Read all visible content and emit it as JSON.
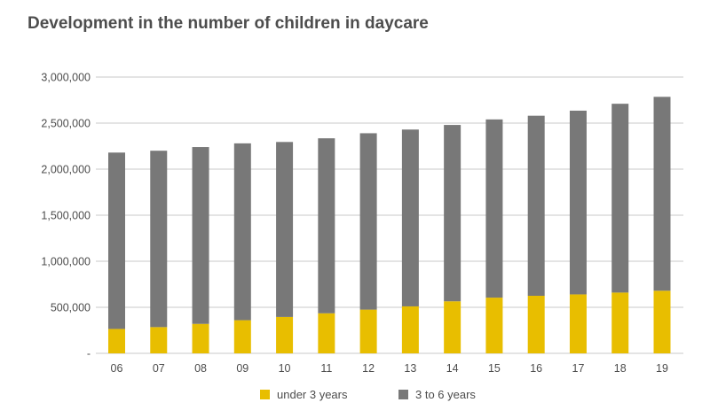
{
  "chart_data": {
    "type": "bar",
    "stacked": true,
    "title": "Development in the number of children in daycare",
    "xlabel": "",
    "ylabel": "",
    "categories": [
      "06",
      "07",
      "08",
      "09",
      "10",
      "11",
      "12",
      "13",
      "14",
      "15",
      "16",
      "17",
      "18",
      "19"
    ],
    "series": [
      {
        "name": "under 3 years",
        "color": "#e8be00",
        "values": [
          265000,
          285000,
          320000,
          360000,
          395000,
          435000,
          475000,
          510000,
          565000,
          605000,
          625000,
          640000,
          660000,
          680000
        ]
      },
      {
        "name": "3 to 6 years",
        "color": "#787878",
        "values": [
          1915000,
          1915000,
          1920000,
          1920000,
          1900000,
          1900000,
          1915000,
          1920000,
          1915000,
          1935000,
          1955000,
          1995000,
          2050000,
          2105000
        ]
      }
    ],
    "ylim": [
      0,
      3000000
    ],
    "y_ticks": [
      "-",
      "500,000",
      "1,000,000",
      "1,500,000",
      "2,000,000",
      "2,500,000",
      "3,000,000"
    ],
    "y_tick_values": [
      0,
      500000,
      1000000,
      1500000,
      2000000,
      2500000,
      3000000
    ],
    "grid": true,
    "legend_position": "bottom"
  }
}
